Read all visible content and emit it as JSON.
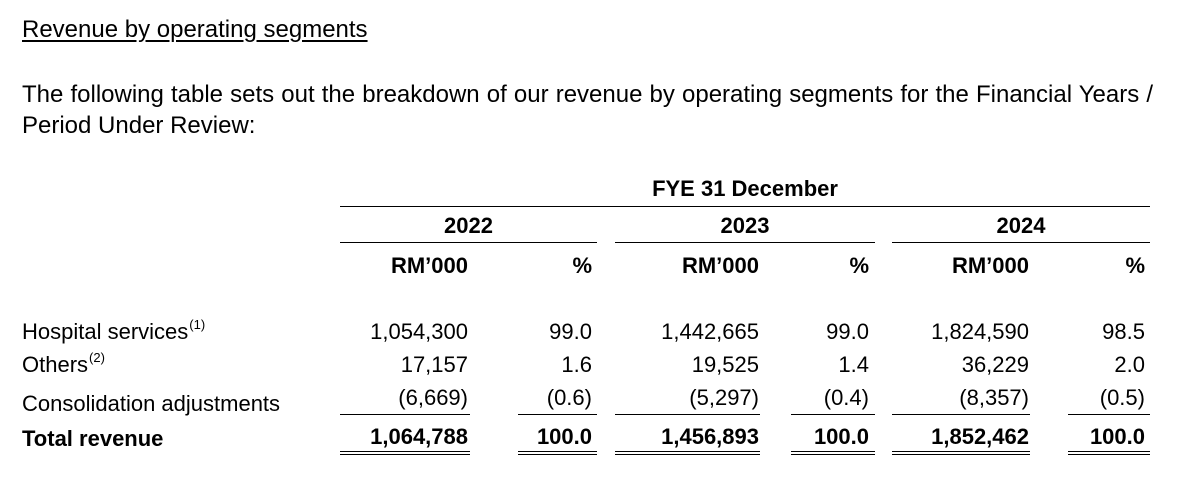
{
  "heading": "Revenue by operating segments",
  "intro": "The following table sets out the breakdown of our revenue by operating segments for the Financial Years / Period Under Review:",
  "table": {
    "group_header": "FYE 31 December",
    "years": [
      "2022",
      "2023",
      "2024"
    ],
    "unit_amount": "RM’000",
    "unit_percent": "%",
    "rows": [
      {
        "label": "Hospital services",
        "note": "(1)",
        "values": [
          "1,054,300",
          "99.0",
          "1,442,665",
          "99.0",
          "1,824,590",
          "98.5"
        ]
      },
      {
        "label": "Others",
        "note": "(2)",
        "values": [
          "17,157",
          "1.6",
          "19,525",
          "1.4",
          "36,229",
          "2.0"
        ]
      },
      {
        "label": "Consolidation adjustments",
        "note": "",
        "values": [
          "(6,669)",
          "(0.6)",
          "(5,297)",
          "(0.4)",
          "(8,357)",
          "(0.5)"
        ]
      }
    ],
    "total": {
      "label": "Total revenue",
      "values": [
        "1,064,788",
        "100.0",
        "1,456,893",
        "100.0",
        "1,852,462",
        "100.0"
      ]
    }
  }
}
